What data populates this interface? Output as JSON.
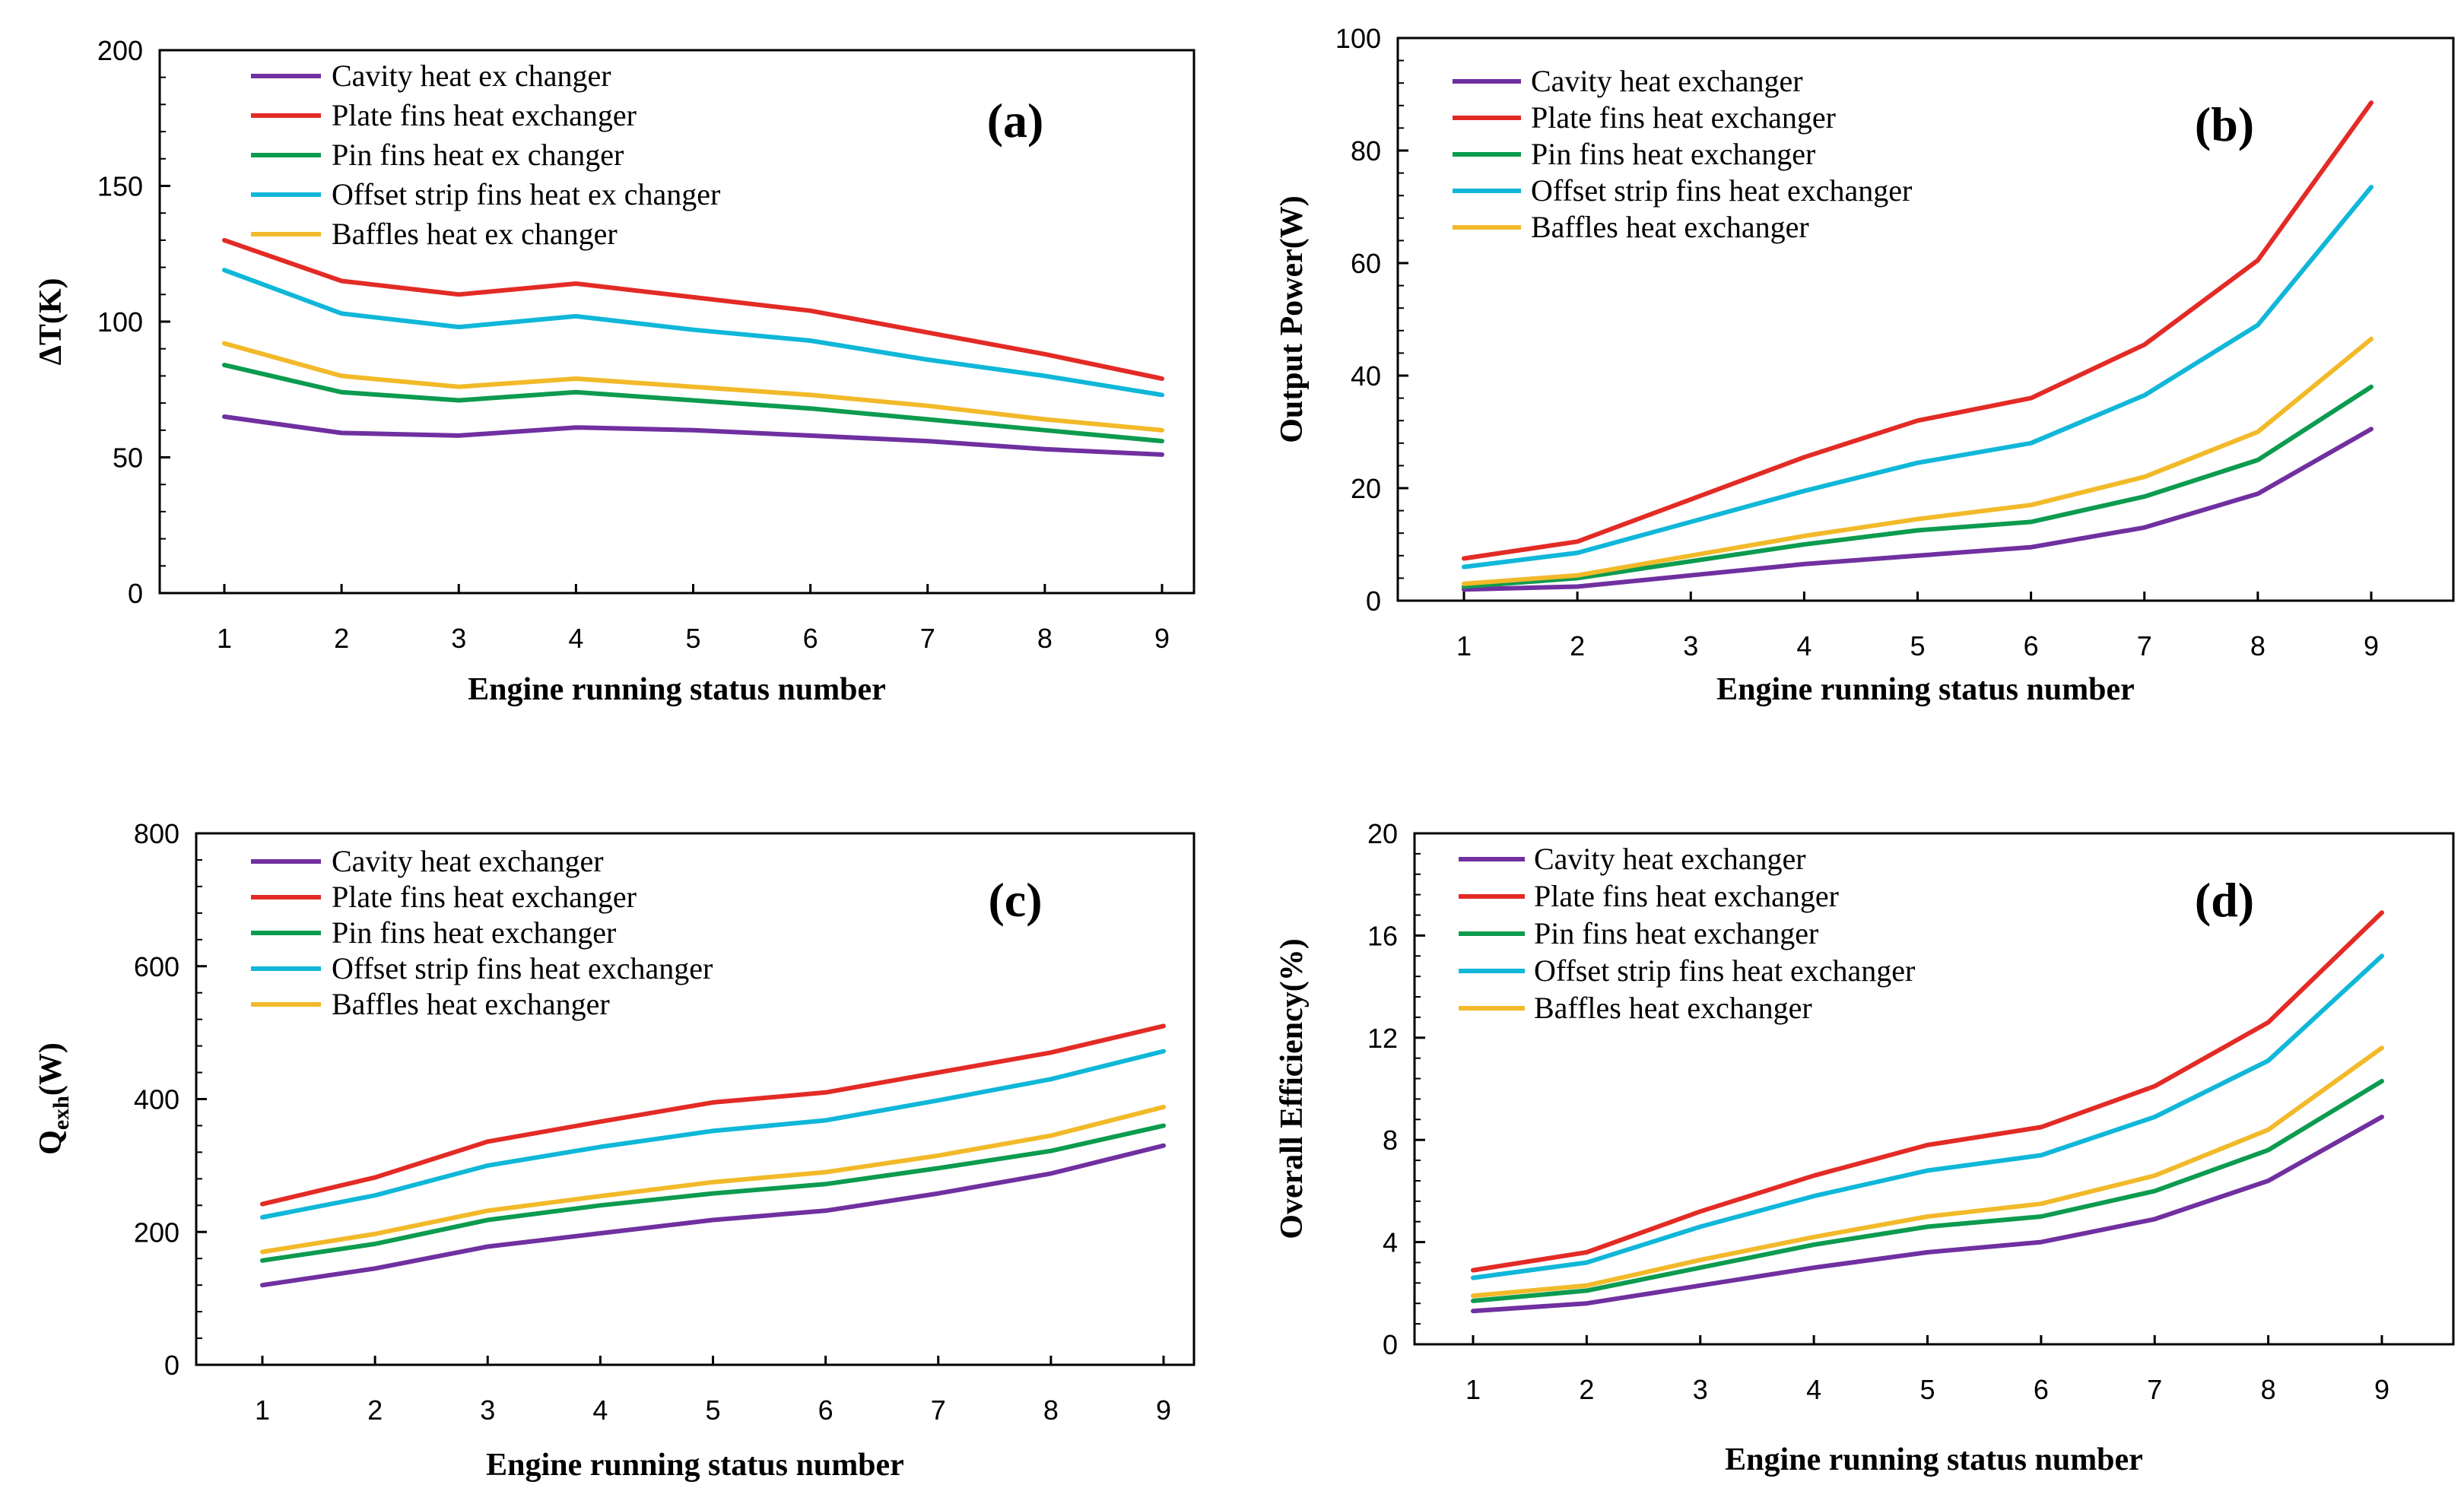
{
  "chart_data": [
    {
      "id": "a",
      "type": "line",
      "panel_label": "(a)",
      "xlabel": "Engine  running   status number",
      "ylabel": "ΔT(K)",
      "categories": [
        1,
        2,
        3,
        4,
        5,
        6,
        7,
        8,
        9
      ],
      "ylim": [
        0,
        200
      ],
      "yticks": [
        0,
        50,
        100,
        150,
        200
      ],
      "series": [
        {
          "name": "Cavity heat ex changer",
          "color": "#7030a0",
          "values": [
            65,
            59,
            58,
            61,
            60,
            58,
            56,
            53,
            51
          ]
        },
        {
          "name": "Plate fins heat exchanger",
          "color": "#e32b26",
          "values": [
            130,
            115,
            110,
            114,
            109,
            104,
            96,
            88,
            79
          ]
        },
        {
          "name": "Pin fins heat ex changer",
          "color": "#0c9b4f",
          "values": [
            84,
            74,
            71,
            74,
            71,
            68,
            64,
            60,
            56
          ]
        },
        {
          "name": "Offset strip fins heat ex changer",
          "color": "#10b7d8",
          "values": [
            119,
            103,
            98,
            102,
            97,
            93,
            86,
            80,
            73
          ]
        },
        {
          "name": "Baffles heat ex changer",
          "color": "#f2b929",
          "values": [
            92,
            80,
            76,
            79,
            76,
            73,
            69,
            64,
            60
          ]
        }
      ]
    },
    {
      "id": "b",
      "type": "line",
      "panel_label": "(b)",
      "xlabel": "Engine running status number",
      "ylabel": "Output  Power(W)",
      "categories": [
        1,
        2,
        3,
        4,
        5,
        6,
        7,
        8,
        9
      ],
      "ylim": [
        0,
        100
      ],
      "yticks": [
        0,
        20,
        40,
        60,
        80,
        100
      ],
      "series": [
        {
          "name": "Cavity heat exchanger",
          "color": "#7030a0",
          "values": [
            2,
            2.5,
            4.5,
            6.5,
            8,
            9.5,
            13,
            19,
            30.5
          ]
        },
        {
          "name": "Plate fins heat exchanger",
          "color": "#e32b26",
          "values": [
            7.5,
            10.5,
            18,
            25.5,
            32,
            36,
            45.5,
            60.5,
            88.5
          ]
        },
        {
          "name": "Pin fins heat exchanger",
          "color": "#0c9b4f",
          "values": [
            2.5,
            4,
            7,
            10,
            12.5,
            14,
            18.5,
            25,
            38
          ]
        },
        {
          "name": "Offset strip fins heat exchanger",
          "color": "#10b7d8",
          "values": [
            6,
            8.5,
            14,
            19.5,
            24.5,
            28,
            36.5,
            49,
            73.5
          ]
        },
        {
          "name": "Baffles heat exchanger",
          "color": "#f2b929",
          "values": [
            3,
            4.5,
            8,
            11.5,
            14.5,
            17,
            22,
            30,
            46.5
          ]
        }
      ]
    },
    {
      "id": "c",
      "type": "line",
      "panel_label": "(c)",
      "xlabel": "Engine running status number",
      "ylabel_main": "Q",
      "ylabel_sub": "exh",
      "ylabel_tail": "(W)",
      "categories": [
        1,
        2,
        3,
        4,
        5,
        6,
        7,
        8,
        9
      ],
      "ylim": [
        0,
        800
      ],
      "yticks": [
        0,
        200,
        400,
        600,
        800
      ],
      "series": [
        {
          "name": "Cavity heat exchanger",
          "color": "#7030a0",
          "values": [
            120,
            145,
            178,
            198,
            218,
            232,
            258,
            288,
            330
          ]
        },
        {
          "name": "Plate fins heat exchanger",
          "color": "#e32b26",
          "values": [
            242,
            282,
            336,
            366,
            395,
            410,
            440,
            470,
            510
          ]
        },
        {
          "name": "Pin fins heat exchanger",
          "color": "#0c9b4f",
          "values": [
            157,
            182,
            218,
            240,
            258,
            272,
            296,
            322,
            360
          ]
        },
        {
          "name": "Offset strip fins heat exchanger",
          "color": "#10b7d8",
          "values": [
            222,
            255,
            300,
            328,
            352,
            368,
            398,
            430,
            472
          ]
        },
        {
          "name": "Baffles heat exchanger",
          "color": "#f2b929",
          "values": [
            170,
            197,
            232,
            254,
            275,
            290,
            315,
            345,
            388
          ]
        }
      ]
    },
    {
      "id": "d",
      "type": "line",
      "panel_label": "(d)",
      "xlabel": "Engine running status number",
      "ylabel": "Overall Efficiency(%)",
      "categories": [
        1,
        2,
        3,
        4,
        5,
        6,
        7,
        8,
        9
      ],
      "ylim": [
        0,
        20
      ],
      "yticks": [
        0,
        4,
        8,
        12,
        16,
        20
      ],
      "series": [
        {
          "name": "Cavity heat exchanger",
          "color": "#7030a0",
          "values": [
            1.3,
            1.6,
            2.3,
            3.0,
            3.6,
            4.0,
            4.9,
            6.4,
            8.9
          ]
        },
        {
          "name": "Plate fins heat exchanger",
          "color": "#e32b26",
          "values": [
            2.9,
            3.6,
            5.2,
            6.6,
            7.8,
            8.5,
            10.1,
            12.6,
            16.9
          ]
        },
        {
          "name": "Pin fins heat exchanger",
          "color": "#0c9b4f",
          "values": [
            1.7,
            2.1,
            3.0,
            3.9,
            4.6,
            5.0,
            6.0,
            7.6,
            10.3
          ]
        },
        {
          "name": "Offset strip fins heat exchanger",
          "color": "#10b7d8",
          "values": [
            2.6,
            3.2,
            4.6,
            5.8,
            6.8,
            7.4,
            8.9,
            11.1,
            15.2
          ]
        },
        {
          "name": "Baffles heat exchanger",
          "color": "#f2b929",
          "values": [
            1.9,
            2.3,
            3.3,
            4.2,
            5.0,
            5.5,
            6.6,
            8.4,
            11.6
          ]
        }
      ]
    }
  ]
}
